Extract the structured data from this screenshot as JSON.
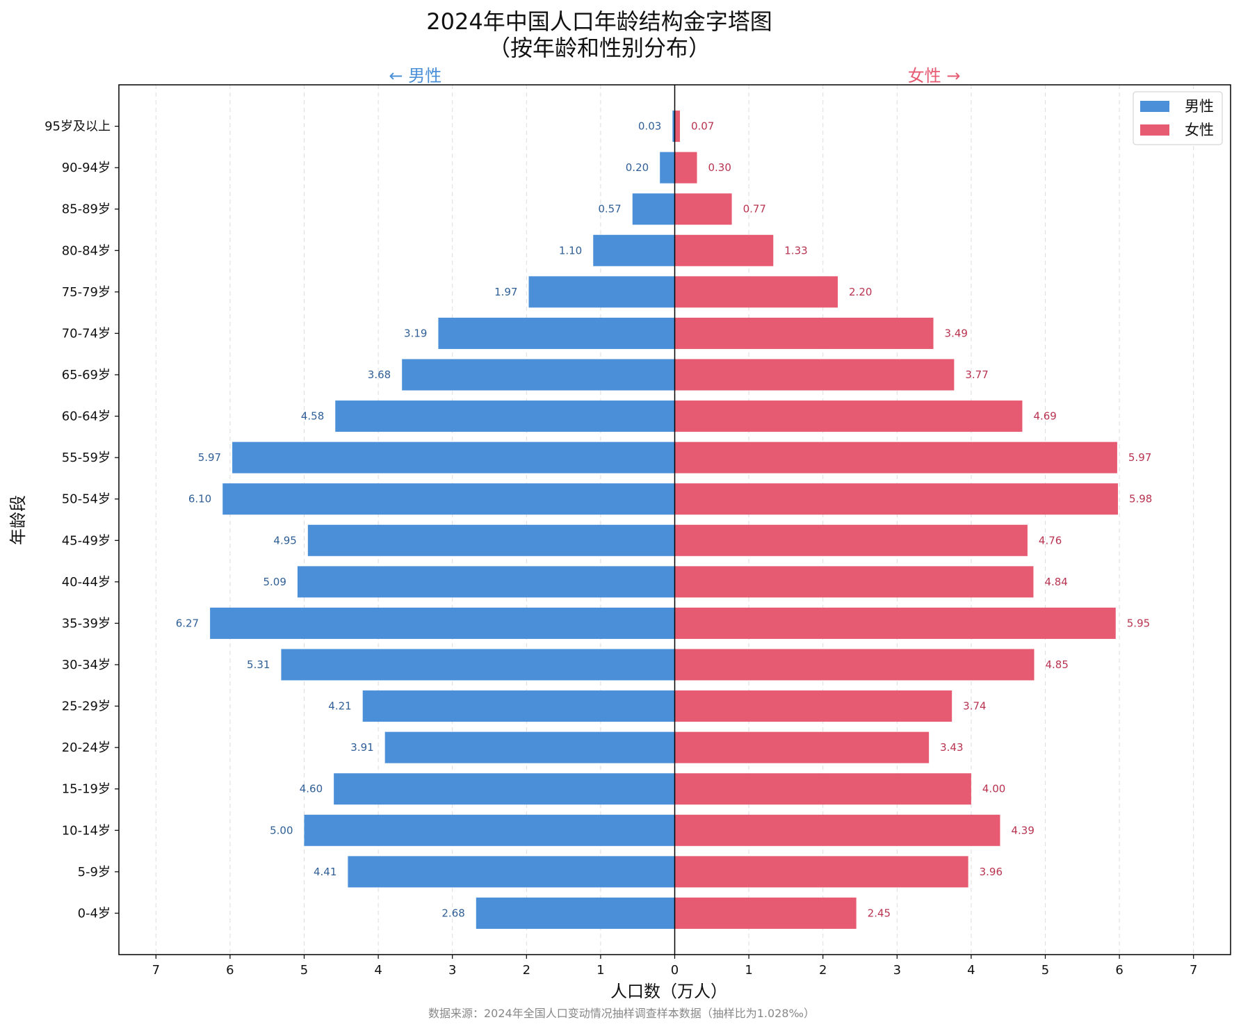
{
  "chart_data": {
    "type": "bar",
    "orientation": "horizontal-population-pyramid",
    "title_line1": "2024年中国人口年龄结构金字塔图",
    "title_line2": "（按年龄和性别分布）",
    "left_direction_label": "← 男性",
    "right_direction_label": "女性 →",
    "xlabel": "人口数（万人）",
    "ylabel": "年龄段",
    "source_note": "数据来源：2024年全国人口变动情况抽样调查样本数据（抽样比为1.028‰）",
    "xlim": [
      -7.5,
      7.5
    ],
    "x_ticks": [
      -7,
      -6,
      -5,
      -4,
      -3,
      -2,
      -1,
      0,
      1,
      2,
      3,
      4,
      5,
      6,
      7
    ],
    "x_tick_labels": [
      "7",
      "6",
      "5",
      "4",
      "3",
      "2",
      "1",
      "0",
      "1",
      "2",
      "3",
      "4",
      "5",
      "6",
      "7"
    ],
    "grid": "vertical dashed",
    "legend_position": "top-right",
    "categories": [
      "0-4岁",
      "5-9岁",
      "10-14岁",
      "15-19岁",
      "20-24岁",
      "25-29岁",
      "30-34岁",
      "35-39岁",
      "40-44岁",
      "45-49岁",
      "50-54岁",
      "55-59岁",
      "60-64岁",
      "65-69岁",
      "70-74岁",
      "75-79岁",
      "80-84岁",
      "85-89岁",
      "90-94岁",
      "95岁及以上"
    ],
    "series": [
      {
        "name": "男性",
        "side": "left",
        "color": "#4a8fd8",
        "label_color": "#2f5f96",
        "values": [
          2.68,
          4.41,
          5.0,
          4.6,
          3.91,
          4.21,
          5.31,
          6.27,
          5.09,
          4.95,
          6.1,
          5.97,
          4.58,
          3.68,
          3.19,
          1.97,
          1.1,
          0.57,
          0.2,
          0.03
        ],
        "value_labels": [
          "2.68",
          "4.41",
          "5.00",
          "4.60",
          "3.91",
          "4.21",
          "5.31",
          "6.27",
          "5.09",
          "4.95",
          "6.10",
          "5.97",
          "4.58",
          "3.68",
          "3.19",
          "1.97",
          "1.10",
          "0.57",
          "0.20",
          "0.03"
        ]
      },
      {
        "name": "女性",
        "side": "right",
        "color": "#e65a72",
        "label_color": "#b83350",
        "values": [
          2.45,
          3.96,
          4.39,
          4.0,
          3.43,
          3.74,
          4.85,
          5.95,
          4.84,
          4.76,
          5.98,
          5.97,
          4.69,
          3.77,
          3.49,
          2.2,
          1.33,
          0.77,
          0.3,
          0.07
        ],
        "value_labels": [
          "2.45",
          "3.96",
          "4.39",
          "4.00",
          "3.43",
          "3.74",
          "4.85",
          "5.95",
          "4.84",
          "4.76",
          "5.98",
          "5.97",
          "4.69",
          "3.77",
          "3.49",
          "2.20",
          "1.33",
          "0.77",
          "0.30",
          "0.07"
        ]
      }
    ],
    "colors": {
      "male_dir": "#4a8fd8",
      "female_dir": "#e65a72",
      "grid": "#dddddd",
      "axis": "#000000"
    }
  }
}
